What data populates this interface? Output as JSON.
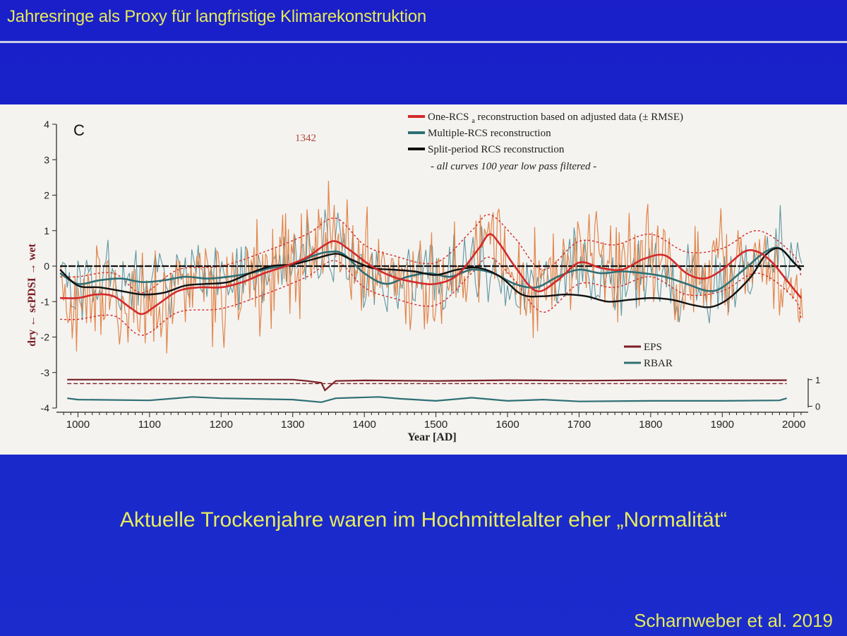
{
  "slide": {
    "title": "Jahresringe als Proxy für langfristige Klimarekonstruktion",
    "caption": "Aktuelle Trockenjahre waren im Hochmittelalter eher „Normalität“",
    "citation": "Scharnweber et al. 2019"
  },
  "chart_data": {
    "type": "line",
    "panel_label": "C",
    "xlabel": "Year [AD]",
    "ylabel": "dry ← scPDSI → wet",
    "xlim": [
      970,
      2020
    ],
    "ylim": [
      -4,
      4
    ],
    "x_ticks": [
      1000,
      1100,
      1200,
      1300,
      1400,
      1500,
      1600,
      1700,
      1800,
      1900,
      2000
    ],
    "y_ticks": [
      4,
      3,
      2,
      1,
      0,
      -1,
      -2,
      -3,
      -4
    ],
    "secondary_y_ticks": [
      "1",
      "0"
    ],
    "annotation": {
      "text": "1342",
      "x": 1342
    },
    "legend_top": [
      {
        "label": "One-RCS",
        "subscript": "a",
        "label_rest": " reconstruction based on adjusted data (± RMSE)",
        "color": "#d42a2a"
      },
      {
        "label": "Multiple-RCS reconstruction",
        "color": "#2f6f74"
      },
      {
        "label": "Split-period RCS reconstruction",
        "color": "#111111"
      }
    ],
    "legend_note": "- all curves 100 year low pass filtered -",
    "legend_bottom": [
      {
        "label": "EPS",
        "color": "#7a1e24"
      },
      {
        "label": "RBAR",
        "color": "#2f6f74"
      }
    ],
    "colors": {
      "annual_orange": "#e07a3a",
      "annual_teal": "#2f7a85",
      "one_rcs": "#d42a2a",
      "multiple_rcs": "#2f6f74",
      "split_rcs": "#111111",
      "eps": "#7a1e24",
      "rbar": "#2f6f74"
    },
    "series": [
      {
        "name": "One-RCS",
        "x": [
          975,
          1000,
          1025,
          1050,
          1075,
          1090,
          1110,
          1140,
          1170,
          1200,
          1230,
          1260,
          1290,
          1320,
          1345,
          1360,
          1380,
          1410,
          1440,
          1470,
          1500,
          1530,
          1560,
          1575,
          1590,
          1610,
          1640,
          1670,
          1700,
          1730,
          1760,
          1790,
          1820,
          1850,
          1875,
          1900,
          1930,
          1950,
          1970,
          1990,
          2010
        ],
        "y": [
          -0.9,
          -0.9,
          -0.8,
          -0.85,
          -1.2,
          -1.35,
          -1.1,
          -0.7,
          -0.6,
          -0.6,
          -0.45,
          -0.2,
          0.0,
          0.25,
          0.6,
          0.7,
          0.45,
          0.0,
          -0.3,
          -0.45,
          -0.5,
          -0.25,
          0.5,
          0.9,
          0.6,
          0.0,
          -0.7,
          -0.4,
          0.1,
          -0.05,
          -0.1,
          0.2,
          0.3,
          -0.2,
          -0.35,
          -0.1,
          0.4,
          0.4,
          0.1,
          -0.4,
          -0.9
        ]
      },
      {
        "name": "Multiple-RCS",
        "x": [
          975,
          1000,
          1030,
          1060,
          1090,
          1120,
          1150,
          1180,
          1210,
          1240,
          1270,
          1300,
          1330,
          1350,
          1370,
          1400,
          1430,
          1460,
          1490,
          1520,
          1550,
          1580,
          1610,
          1640,
          1670,
          1700,
          1730,
          1760,
          1790,
          1820,
          1850,
          1880,
          1900,
          1930,
          1960,
          1980,
          2000,
          2010
        ],
        "y": [
          -0.2,
          -0.5,
          -0.4,
          -0.35,
          -0.45,
          -0.4,
          -0.3,
          -0.35,
          -0.3,
          -0.2,
          -0.05,
          0.05,
          0.3,
          0.4,
          0.35,
          -0.2,
          -0.5,
          -0.3,
          -0.2,
          -0.3,
          -0.1,
          -0.2,
          -0.5,
          -0.6,
          -0.3,
          -0.1,
          -0.2,
          -0.15,
          -0.2,
          -0.3,
          -0.5,
          -0.7,
          -0.6,
          -0.1,
          0.4,
          0.5,
          0.1,
          -0.1
        ]
      },
      {
        "name": "Split-period RCS",
        "x": [
          975,
          1000,
          1030,
          1060,
          1090,
          1120,
          1150,
          1180,
          1210,
          1240,
          1270,
          1300,
          1330,
          1360,
          1380,
          1410,
          1440,
          1470,
          1500,
          1530,
          1560,
          1590,
          1620,
          1650,
          1680,
          1710,
          1740,
          1770,
          1800,
          1830,
          1860,
          1885,
          1910,
          1940,
          1960,
          1980,
          2000,
          2010
        ],
        "y": [
          -0.1,
          -0.55,
          -0.6,
          -0.7,
          -0.8,
          -0.75,
          -0.55,
          -0.5,
          -0.45,
          -0.2,
          0.0,
          0.05,
          0.2,
          0.35,
          0.2,
          -0.05,
          -0.1,
          -0.15,
          -0.25,
          -0.1,
          -0.05,
          -0.3,
          -0.8,
          -0.85,
          -0.8,
          -0.85,
          -1.0,
          -0.95,
          -0.9,
          -0.95,
          -1.1,
          -1.15,
          -0.9,
          -0.3,
          0.3,
          0.5,
          0.1,
          -0.1
        ]
      },
      {
        "name": "RMSE upper",
        "x": [
          975,
          1000,
          1050,
          1090,
          1140,
          1200,
          1260,
          1320,
          1360,
          1400,
          1440,
          1500,
          1550,
          1575,
          1610,
          1650,
          1700,
          1750,
          1800,
          1850,
          1900,
          1950,
          2000,
          2010
        ],
        "y": [
          -0.3,
          -0.3,
          -0.2,
          -0.75,
          -0.1,
          0.0,
          0.4,
          0.9,
          1.35,
          0.6,
          0.3,
          0.1,
          1.0,
          1.45,
          0.8,
          -0.1,
          0.7,
          0.6,
          0.9,
          0.4,
          0.5,
          1.0,
          0.3,
          -0.3
        ]
      },
      {
        "name": "RMSE lower",
        "x": [
          975,
          1000,
          1050,
          1090,
          1140,
          1200,
          1260,
          1320,
          1360,
          1400,
          1440,
          1500,
          1550,
          1575,
          1610,
          1650,
          1700,
          1750,
          1800,
          1850,
          1900,
          1950,
          2000,
          2010
        ],
        "y": [
          -1.5,
          -1.5,
          -1.4,
          -1.95,
          -1.3,
          -1.2,
          -0.8,
          -0.3,
          0.15,
          -0.6,
          -0.9,
          -1.1,
          -0.2,
          0.25,
          -0.4,
          -1.3,
          -0.5,
          -0.6,
          -0.3,
          -0.8,
          -0.7,
          -0.2,
          -0.9,
          -1.5
        ]
      },
      {
        "name": "EPS",
        "x": [
          985,
          1100,
          1200,
          1300,
          1320,
          1340,
          1345,
          1360,
          1400,
          1500,
          1600,
          1700,
          1800,
          1900,
          1990
        ],
        "y": [
          1.0,
          1.0,
          1.0,
          1.0,
          0.95,
          0.88,
          0.6,
          0.95,
          0.97,
          0.95,
          0.98,
          0.96,
          0.98,
          0.98,
          0.98
        ]
      },
      {
        "name": "RBAR",
        "x": [
          985,
          1000,
          1100,
          1160,
          1200,
          1300,
          1340,
          1360,
          1420,
          1450,
          1500,
          1550,
          1600,
          1650,
          1700,
          1800,
          1900,
          1980,
          1990
        ],
        "y": [
          0.3,
          0.25,
          0.22,
          0.35,
          0.3,
          0.25,
          0.15,
          0.3,
          0.35,
          0.28,
          0.2,
          0.32,
          0.2,
          0.25,
          0.18,
          0.2,
          0.2,
          0.22,
          0.3
        ]
      }
    ]
  }
}
